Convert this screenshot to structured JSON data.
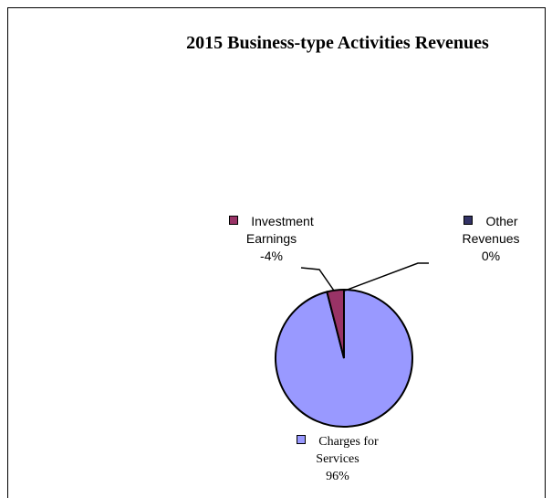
{
  "chart_data": {
    "type": "pie",
    "title": "2015 Business-type Activities Revenues",
    "categories": [
      "Charges for Services",
      "Investment Earnings",
      "Other Revenues"
    ],
    "values": [
      96,
      -4,
      0
    ],
    "value_labels": [
      "96%",
      "-4%",
      "0%"
    ],
    "colors": [
      "#9999ff",
      "#993366",
      "#333366"
    ]
  }
}
